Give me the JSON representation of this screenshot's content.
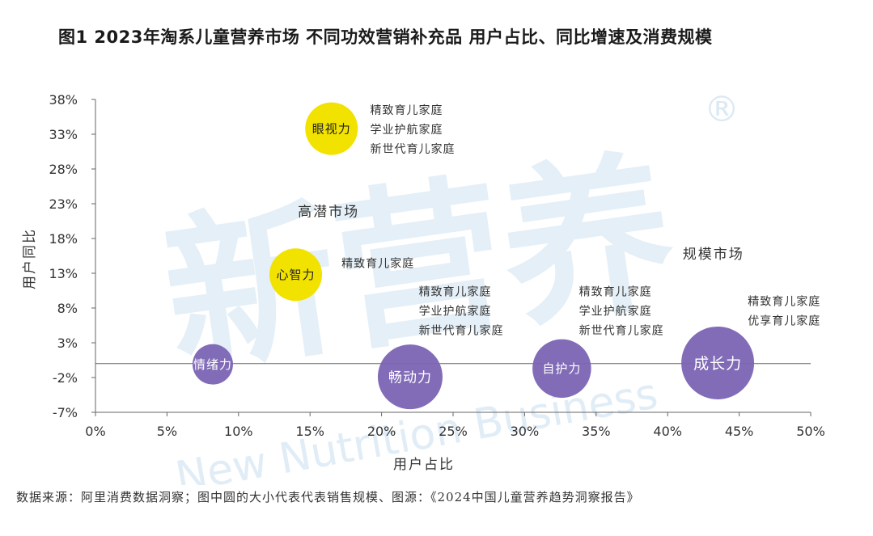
{
  "title": "图1  2023年淘系儿童营养市场 不同功效营销补充品 用户占比、同比增速及消费规模",
  "footnote": "数据来源：阿里消费数据洞察；图中圆的大小代表代表销售规模、图源：《2024中国儿童营养趋势洞察报告》",
  "watermark": {
    "text": "新营养",
    "registered": "®",
    "subtext": "New Nutrition Business"
  },
  "colors": {
    "yellow": "#f2e200",
    "purple": "#7b64b4",
    "axis": "#666666",
    "watermark": "#dbe9f4"
  },
  "chart_data": {
    "type": "scatter",
    "title": "2023年淘系儿童营养市场 不同功效营销补充品 用户占比、同比增速及消费规模",
    "xlabel": "用户占比",
    "ylabel": "用户同比",
    "xlim": [
      0,
      50
    ],
    "ylim": [
      -7,
      38
    ],
    "x_ticks": [
      "0%",
      "5%",
      "10%",
      "15%",
      "20%",
      "25%",
      "30%",
      "35%",
      "40%",
      "45%",
      "50%"
    ],
    "y_ticks": [
      "38%",
      "33%",
      "28%",
      "23%",
      "18%",
      "13%",
      "8%",
      "3%",
      "-2%",
      "-7%"
    ],
    "x_tick_values": [
      0,
      5,
      10,
      15,
      20,
      25,
      30,
      35,
      40,
      45,
      50
    ],
    "y_tick_values": [
      38,
      33,
      28,
      23,
      18,
      13,
      8,
      3,
      -2,
      -7
    ],
    "reference_line_y": 0,
    "region_labels": [
      {
        "text": "高潜市场",
        "x": 16.3,
        "y": 21.2
      },
      {
        "text": "规模市场",
        "x": 43.2,
        "y": 15.1
      }
    ],
    "bubbles": [
      {
        "name": "眼视力",
        "x": 16.5,
        "y": 33.8,
        "size": 1.3,
        "color": "yellow",
        "annotations": [
          "精致育儿家庭",
          "学业护航家庭",
          "新世代育儿家庭"
        ],
        "ann_x": 19.2,
        "ann_y": 35.9
      },
      {
        "name": "心智力",
        "x": 14.0,
        "y": 12.8,
        "size": 1.3,
        "color": "yellow",
        "annotations": [
          "精致育儿家庭"
        ],
        "ann_x": 17.2,
        "ann_y": 13.9
      },
      {
        "name": "情绪力",
        "x": 8.2,
        "y": -0.1,
        "size": 1.0,
        "color": "purple",
        "annotations": [],
        "ann_x": 0,
        "ann_y": 0
      },
      {
        "name": "畅动力",
        "x": 22.0,
        "y": -1.9,
        "size": 1.6,
        "color": "purple",
        "annotations": [
          "精致育儿家庭",
          "学业护航家庭",
          "新世代育儿家庭"
        ],
        "ann_x": 22.6,
        "ann_y": 9.8
      },
      {
        "name": "自护力",
        "x": 32.6,
        "y": -0.7,
        "size": 1.45,
        "color": "purple",
        "annotations": [
          "精致育儿家庭",
          "学业护航家庭",
          "新世代育儿家庭"
        ],
        "ann_x": 33.8,
        "ann_y": 9.8
      },
      {
        "name": "成长力",
        "x": 43.5,
        "y": 0.1,
        "size": 1.8,
        "color": "purple",
        "annotations": [
          "精致育儿家庭",
          "优享育儿家庭"
        ],
        "ann_x": 45.6,
        "ann_y": 8.4
      }
    ]
  }
}
